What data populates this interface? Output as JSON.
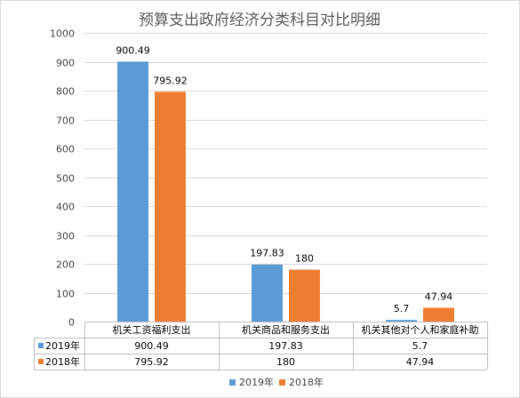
{
  "chart_data": {
    "type": "bar",
    "title": "预算支出政府经济分类科目对比明细",
    "categories": [
      "机关工资福利支出",
      "机关商品和服务支出",
      "机关其他对个人和家庭补助"
    ],
    "series": [
      {
        "name": "2019年",
        "values": [
          900.49,
          197.83,
          5.7
        ],
        "labels": [
          "900.49",
          "197.83",
          "5.7"
        ],
        "color": "#5b9bd5"
      },
      {
        "name": "2018年",
        "values": [
          795.92,
          180,
          47.94
        ],
        "labels": [
          "795.92",
          "180",
          "47.94"
        ],
        "color": "#ed7d31"
      }
    ],
    "ylim": [
      0,
      1000
    ],
    "yticks": [
      "0",
      "100",
      "200",
      "300",
      "400",
      "500",
      "600",
      "700",
      "800",
      "900",
      "1000"
    ],
    "grid": true,
    "data_table": true,
    "legend": "bottom-center"
  }
}
